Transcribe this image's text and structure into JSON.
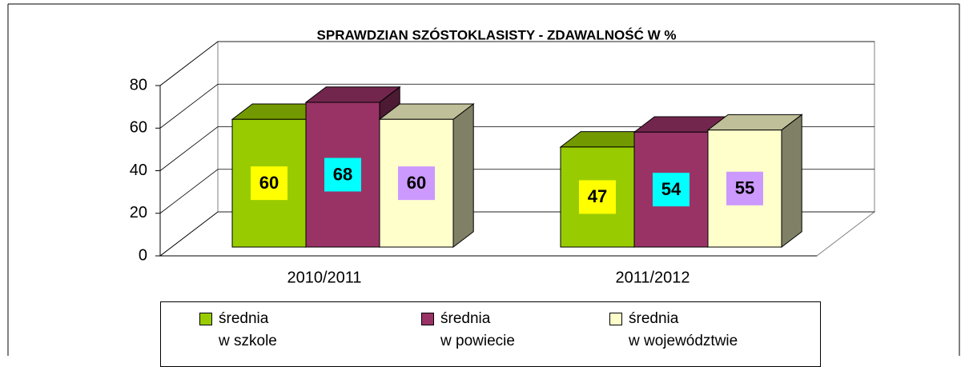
{
  "chart_data": {
    "type": "bar3d",
    "title": "SPRAWDZIAN SZÓSTOKLASISTY - ZDAWALNOŚĆ W %",
    "categories": [
      "2010/2011",
      "2011/2012"
    ],
    "series": [
      {
        "name": "średnia\nw szkole",
        "color": "#99cc00",
        "label_color": "#ffff00",
        "values": [
          60,
          47
        ]
      },
      {
        "name": "średnia\nw powiecie",
        "color": "#993366",
        "label_color": "#00ffff",
        "values": [
          68,
          54
        ]
      },
      {
        "name": "średnia\nw województwie",
        "color": "#ffffcc",
        "label_color": "#cc99ff",
        "values": [
          60,
          55
        ]
      }
    ],
    "ylim": [
      0,
      80
    ],
    "yticks": [
      0,
      20,
      40,
      60,
      80
    ],
    "grid": true,
    "legend": "bottom"
  }
}
